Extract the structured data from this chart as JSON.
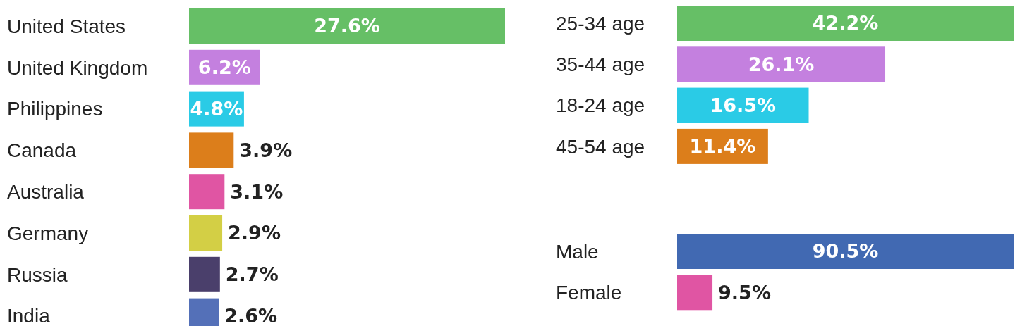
{
  "chart_data": [
    {
      "type": "bar",
      "orientation": "horizontal",
      "categories": [
        "United States",
        "United Kingdom",
        "Philippines",
        "Canada",
        "Australia",
        "Germany",
        "Russia",
        "India"
      ],
      "values": [
        27.6,
        6.2,
        4.8,
        3.9,
        3.1,
        2.9,
        2.7,
        2.6
      ],
      "value_labels": [
        "27.6%",
        "6.2%",
        "4.8%",
        "3.9%",
        "3.1%",
        "2.9%",
        "2.7%",
        "2.6%"
      ],
      "colors": [
        "#66bf66",
        "#c480df",
        "#2acbe6",
        "#dc7e1b",
        "#e055a3",
        "#d3cf45",
        "#4a3f6b",
        "#5470b8"
      ]
    },
    {
      "type": "bar",
      "orientation": "horizontal",
      "categories": [
        "25-34 age",
        "35-44 age",
        "18-24 age",
        "45-54 age"
      ],
      "values": [
        42.2,
        26.1,
        16.5,
        11.4
      ],
      "value_labels": [
        "42.2%",
        "26.1%",
        "16.5%",
        "11.4%"
      ],
      "colors": [
        "#66bf66",
        "#c480df",
        "#2acbe6",
        "#dc7e1b"
      ]
    },
    {
      "type": "bar",
      "orientation": "horizontal",
      "categories": [
        "Male",
        "Female"
      ],
      "values": [
        90.5,
        9.5
      ],
      "value_labels": [
        "90.5%",
        "9.5%"
      ],
      "colors": [
        "#4169b2",
        "#e055a3"
      ]
    }
  ]
}
